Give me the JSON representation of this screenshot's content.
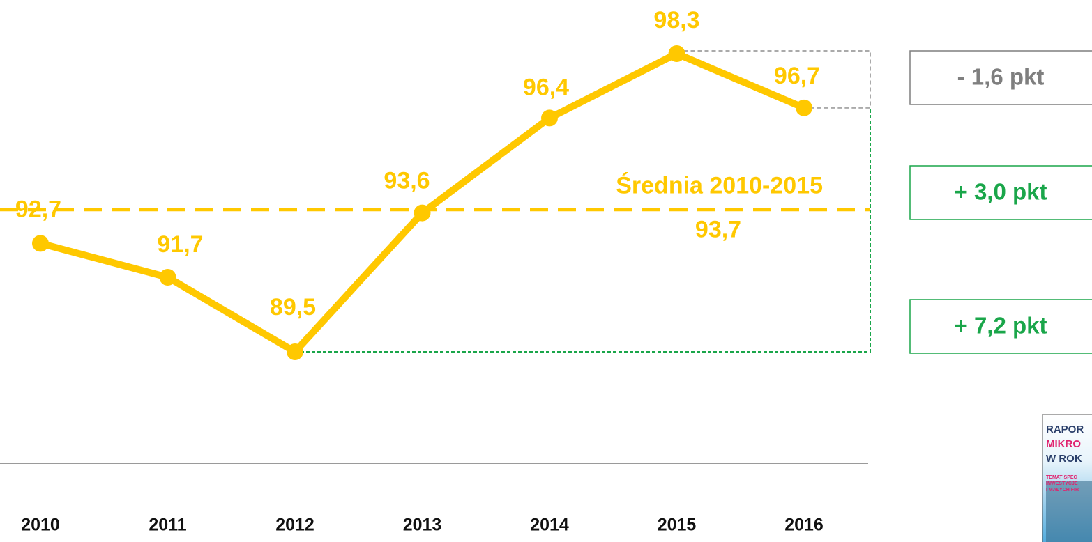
{
  "chart_data": {
    "type": "line",
    "categories": [
      "2010",
      "2011",
      "2012",
      "2013",
      "2014",
      "2015",
      "2016"
    ],
    "values": [
      92.7,
      91.7,
      89.5,
      93.6,
      96.4,
      98.3,
      96.7
    ],
    "value_labels": [
      "92,7",
      "91,7",
      "89,5",
      "93,6",
      "96,4",
      "98,3",
      "96,7"
    ],
    "color": "#ffc800",
    "average": {
      "label": "Średnia 2010-2015",
      "value": 93.7,
      "value_label": "93,7"
    },
    "annotations": [
      {
        "text": "- 1,6 pkt",
        "color": "#7f7f7f"
      },
      {
        "text": "+ 3,0 pkt",
        "color": "#1aa64a"
      },
      {
        "text": "+ 7,2 pkt",
        "color": "#1aa64a"
      }
    ],
    "cover": [
      "RAPOR",
      "MIKRO",
      "W ROK",
      "TEMAT SPEC",
      "INWESTYCJE",
      "I MAŁYCH FIR"
    ]
  }
}
